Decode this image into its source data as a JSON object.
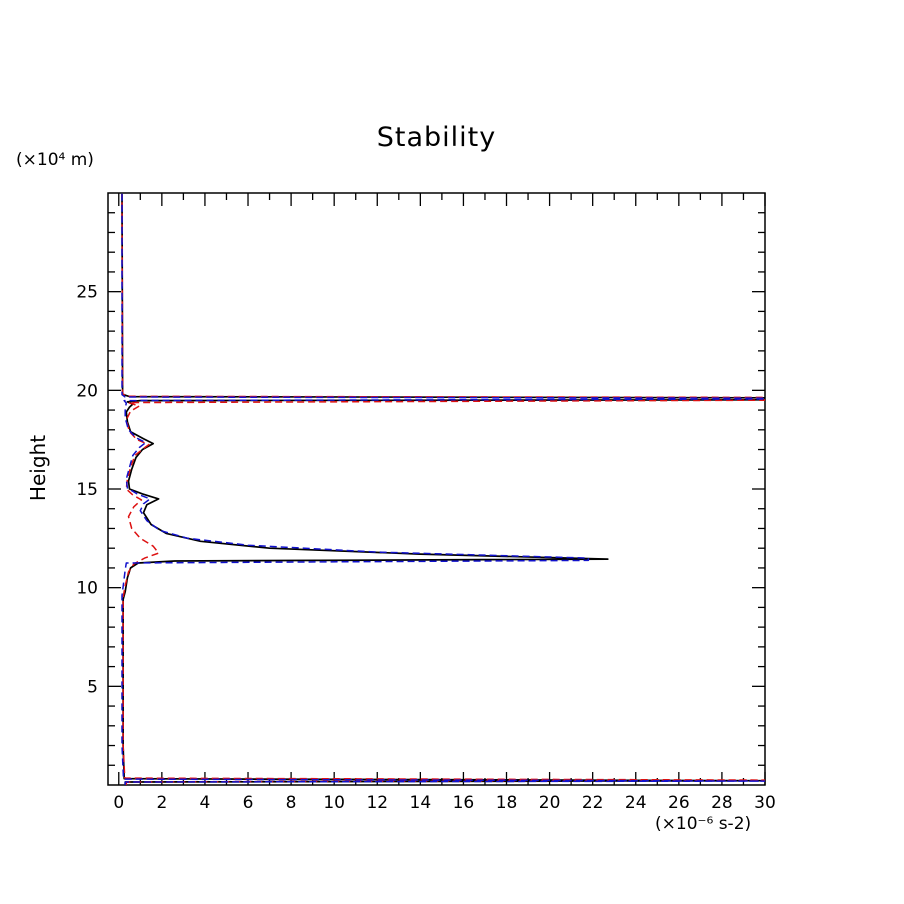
{
  "title": "Stability",
  "labels": {
    "y_unit": "(×10⁴ m)",
    "y_axis": "Height",
    "x_unit": "(×10⁻⁶ s-2)"
  },
  "chart_data": {
    "type": "line",
    "title": "Stability",
    "xlabel": "(×10⁻⁶ s-2)",
    "ylabel": "Height (×10⁴ m)",
    "xlim": [
      -0.5,
      30
    ],
    "ylim": [
      0,
      30
    ],
    "x_ticks": [
      0,
      2,
      4,
      6,
      8,
      10,
      12,
      14,
      16,
      18,
      20,
      22,
      24,
      26,
      28,
      30
    ],
    "x_minor_step": 1,
    "y_ticks": [
      5,
      10,
      15,
      20,
      25
    ],
    "y_minor_step": 1,
    "grid": false,
    "legend": "none",
    "frame_color": "#000000",
    "series": [
      {
        "name": "profile-black-solid",
        "color": "#000000",
        "style": "solid",
        "points": [
          [
            0.3,
            0.0
          ],
          [
            0.3,
            0.15
          ],
          [
            30,
            0.22
          ],
          [
            0.25,
            0.32
          ],
          [
            0.2,
            2.0
          ],
          [
            0.2,
            9.4
          ],
          [
            0.3,
            9.8
          ],
          [
            0.4,
            10.5
          ],
          [
            0.55,
            11.0
          ],
          [
            0.9,
            11.25
          ],
          [
            2.6,
            11.35
          ],
          [
            22.7,
            11.45
          ],
          [
            14.0,
            11.7
          ],
          [
            7.0,
            12.0
          ],
          [
            3.8,
            12.35
          ],
          [
            2.2,
            12.75
          ],
          [
            1.5,
            13.2
          ],
          [
            1.15,
            13.8
          ],
          [
            1.3,
            14.2
          ],
          [
            1.85,
            14.5
          ],
          [
            1.1,
            14.75
          ],
          [
            0.5,
            15.0
          ],
          [
            0.45,
            15.4
          ],
          [
            0.6,
            16.0
          ],
          [
            0.8,
            16.6
          ],
          [
            1.1,
            17.0
          ],
          [
            1.6,
            17.3
          ],
          [
            1.15,
            17.55
          ],
          [
            0.55,
            17.9
          ],
          [
            0.4,
            18.4
          ],
          [
            0.35,
            18.9
          ],
          [
            0.5,
            19.15
          ],
          [
            0.65,
            19.3
          ],
          [
            0.4,
            19.42
          ],
          [
            1.0,
            19.48
          ],
          [
            30,
            19.52
          ],
          [
            30,
            19.62
          ],
          [
            0.5,
            19.68
          ],
          [
            0.18,
            19.8
          ],
          [
            0.15,
            29.95
          ]
        ]
      },
      {
        "name": "profile-red-dashed",
        "color": "#dd1111",
        "style": "dashed",
        "points": [
          [
            0.35,
            0.0
          ],
          [
            0.35,
            0.15
          ],
          [
            30,
            0.25
          ],
          [
            0.28,
            0.35
          ],
          [
            0.2,
            2.0
          ],
          [
            0.2,
            9.5
          ],
          [
            0.3,
            10.1
          ],
          [
            0.45,
            10.8
          ],
          [
            0.7,
            11.2
          ],
          [
            1.2,
            11.5
          ],
          [
            1.85,
            11.75
          ],
          [
            1.6,
            12.1
          ],
          [
            1.0,
            12.5
          ],
          [
            0.6,
            13.0
          ],
          [
            0.45,
            13.6
          ],
          [
            0.7,
            14.1
          ],
          [
            1.05,
            14.45
          ],
          [
            0.65,
            14.7
          ],
          [
            0.35,
            15.0
          ],
          [
            0.4,
            15.5
          ],
          [
            0.55,
            16.1
          ],
          [
            0.75,
            16.7
          ],
          [
            1.15,
            17.05
          ],
          [
            1.4,
            17.25
          ],
          [
            0.85,
            17.5
          ],
          [
            0.5,
            17.9
          ],
          [
            0.35,
            18.5
          ],
          [
            0.55,
            18.95
          ],
          [
            0.95,
            19.2
          ],
          [
            0.45,
            19.38
          ],
          [
            30,
            19.5
          ],
          [
            30,
            19.64
          ],
          [
            0.45,
            19.7
          ],
          [
            0.18,
            19.82
          ],
          [
            0.15,
            29.95
          ]
        ]
      },
      {
        "name": "profile-blue-dashed",
        "color": "#1111cc",
        "style": "dashed",
        "points": [
          [
            0.3,
            0.0
          ],
          [
            0.3,
            0.15
          ],
          [
            30,
            0.2
          ],
          [
            0.22,
            0.3
          ],
          [
            0.15,
            2.0
          ],
          [
            0.15,
            9.6
          ],
          [
            0.22,
            10.2
          ],
          [
            0.3,
            10.9
          ],
          [
            0.35,
            11.25
          ],
          [
            21.8,
            11.38
          ],
          [
            21.8,
            11.5
          ],
          [
            12.0,
            11.8
          ],
          [
            6.0,
            12.15
          ],
          [
            3.2,
            12.5
          ],
          [
            1.9,
            12.9
          ],
          [
            1.3,
            13.4
          ],
          [
            1.0,
            13.9
          ],
          [
            1.15,
            14.25
          ],
          [
            1.45,
            14.5
          ],
          [
            0.85,
            14.75
          ],
          [
            0.4,
            15.05
          ],
          [
            0.35,
            15.5
          ],
          [
            0.5,
            16.1
          ],
          [
            0.65,
            16.7
          ],
          [
            0.95,
            17.1
          ],
          [
            1.25,
            17.35
          ],
          [
            0.8,
            17.6
          ],
          [
            0.45,
            18.0
          ],
          [
            0.3,
            18.6
          ],
          [
            0.3,
            19.1
          ],
          [
            0.35,
            19.35
          ],
          [
            0.25,
            19.48
          ],
          [
            30,
            19.56
          ],
          [
            30,
            19.6
          ],
          [
            0.3,
            19.66
          ],
          [
            0.15,
            19.78
          ],
          [
            0.15,
            30
          ]
        ]
      }
    ]
  }
}
